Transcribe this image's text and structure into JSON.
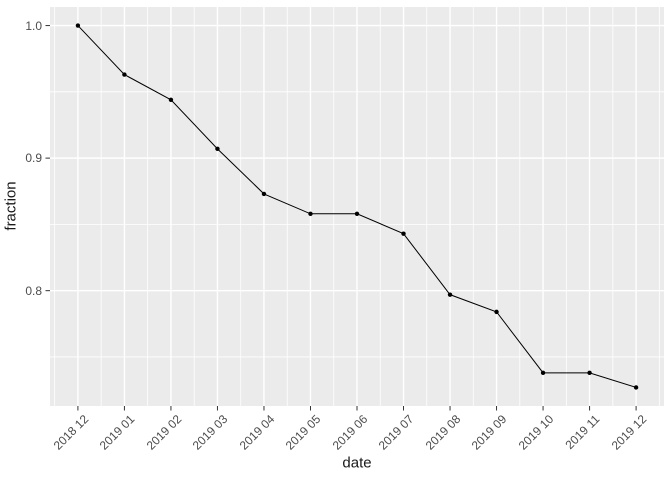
{
  "chart_data": {
    "type": "line",
    "title": "",
    "xlabel": "date",
    "ylabel": "fraction",
    "categories": [
      "2018 12",
      "2019 01",
      "2019 02",
      "2019 03",
      "2019 04",
      "2019 05",
      "2019 06",
      "2019 07",
      "2019 08",
      "2019 09",
      "2019 10",
      "2019 11",
      "2019 12"
    ],
    "values": [
      1.0,
      0.963,
      0.944,
      0.907,
      0.873,
      0.858,
      0.858,
      0.843,
      0.797,
      0.784,
      0.738,
      0.738,
      0.727
    ],
    "y_major_ticks": [
      1.0,
      0.9,
      0.8
    ],
    "y_tick_labels": [
      "1.0",
      "0.9",
      "0.8"
    ],
    "y_minor_ticks": [
      0.95,
      0.85,
      0.75
    ],
    "ylim": [
      0.713,
      1.014
    ],
    "grid": true,
    "legend": false,
    "colors": {
      "figure_bg": "#ffffff",
      "panel_bg": "#ebebeb",
      "grid": "#ffffff",
      "line": "#000000",
      "point": "#000000",
      "axis_text": "#4d4d4d",
      "axis_title": "#1a1a1a",
      "tick_mark": "#333333"
    }
  }
}
